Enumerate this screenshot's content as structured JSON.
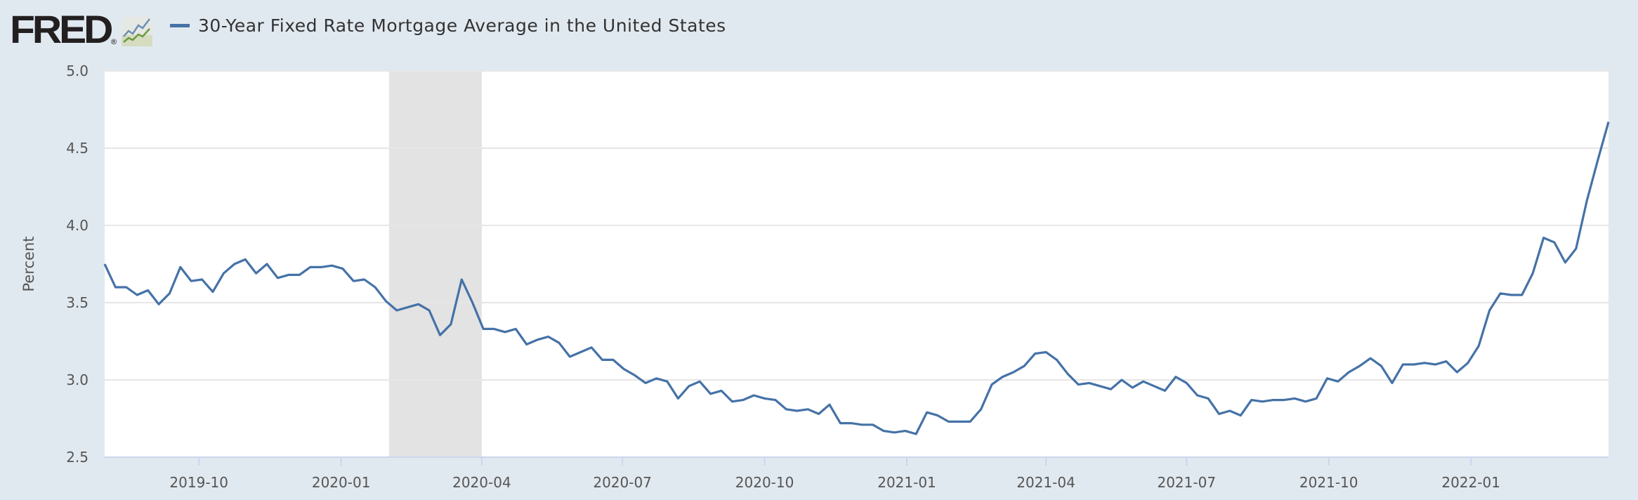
{
  "logo": {
    "text": "FRED",
    "reg": "®",
    "icon": "fred-chart-icon"
  },
  "colors": {
    "line": "#4572a7",
    "recession": "#e3e3e3",
    "grid": "#e6e6e6",
    "background": "#e1e9f0"
  },
  "chart_data": {
    "type": "line",
    "title": "30-Year Fixed Rate Mortgage Average in the United States",
    "xlabel": "",
    "ylabel": "Percent",
    "ylim": [
      2.5,
      5.0
    ],
    "yticks": [
      "2.5",
      "3.0",
      "3.5",
      "4.0",
      "4.5",
      "5.0"
    ],
    "xlim": [
      "2019-08-01",
      "2022-03-31"
    ],
    "xticks": [
      "2019-10",
      "2020-01",
      "2020-04",
      "2020-07",
      "2020-10",
      "2021-01",
      "2021-04",
      "2021-07",
      "2021-10",
      "2022-01"
    ],
    "grid": true,
    "legend": "top-left",
    "recession": [
      "2020-02-01",
      "2020-04-01"
    ],
    "x_start": "2019-08-01",
    "frequency": "weekly",
    "series": [
      {
        "name": "30-Year Fixed Rate Mortgage Average in the United States",
        "values": [
          3.75,
          3.6,
          3.6,
          3.55,
          3.58,
          3.49,
          3.56,
          3.73,
          3.64,
          3.65,
          3.57,
          3.69,
          3.75,
          3.78,
          3.69,
          3.75,
          3.66,
          3.68,
          3.68,
          3.73,
          3.73,
          3.74,
          3.72,
          3.64,
          3.65,
          3.6,
          3.51,
          3.45,
          3.47,
          3.49,
          3.45,
          3.29,
          3.36,
          3.65,
          3.5,
          3.33,
          3.33,
          3.31,
          3.33,
          3.23,
          3.26,
          3.28,
          3.24,
          3.15,
          3.18,
          3.21,
          3.13,
          3.13,
          3.07,
          3.03,
          2.98,
          3.01,
          2.99,
          2.88,
          2.96,
          2.99,
          2.91,
          2.93,
          2.86,
          2.87,
          2.9,
          2.88,
          2.87,
          2.81,
          2.8,
          2.81,
          2.78,
          2.84,
          2.72,
          2.72,
          2.71,
          2.71,
          2.67,
          2.66,
          2.67,
          2.65,
          2.79,
          2.77,
          2.73,
          2.73,
          2.73,
          2.81,
          2.97,
          3.02,
          3.05,
          3.09,
          3.17,
          3.18,
          3.13,
          3.04,
          2.97,
          2.98,
          2.96,
          2.94,
          3.0,
          2.95,
          2.99,
          2.96,
          2.93,
          3.02,
          2.98,
          2.9,
          2.88,
          2.78,
          2.8,
          2.77,
          2.87,
          2.86,
          2.87,
          2.87,
          2.88,
          2.86,
          2.88,
          3.01,
          2.99,
          3.05,
          3.09,
          3.14,
          3.09,
          2.98,
          3.1,
          3.1,
          3.11,
          3.1,
          3.12,
          3.05,
          3.11,
          3.22,
          3.45,
          3.56,
          3.55,
          3.55,
          3.69,
          3.92,
          3.89,
          3.76,
          3.85,
          4.16,
          4.42,
          4.67
        ]
      }
    ]
  }
}
